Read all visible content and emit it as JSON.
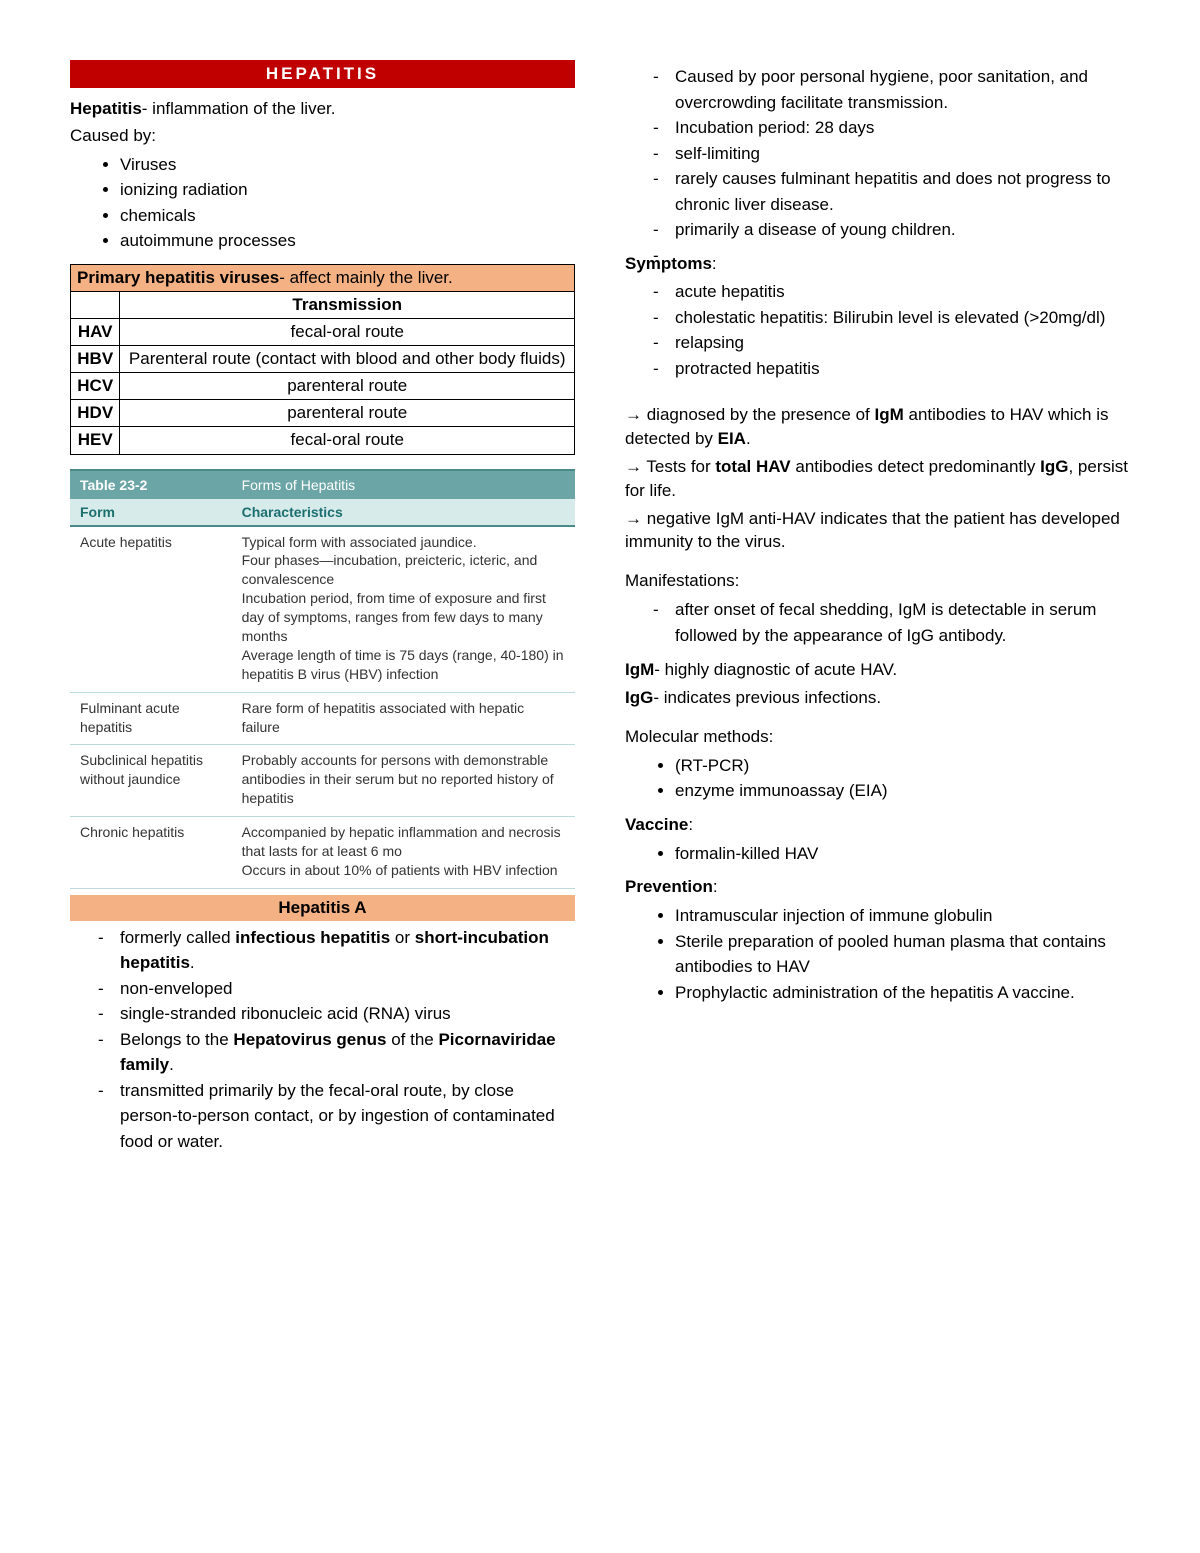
{
  "banner": "HEPATITIS",
  "intro": {
    "term": "Hepatitis",
    "definition": "- inflammation of the liver.",
    "caused_by_label": "Caused by:",
    "causes": [
      "Viruses",
      "ionizing radiation",
      "chemicals",
      "autoimmune processes"
    ]
  },
  "primary_table": {
    "header_html": "<span class=\"bold\">Primary hepatitis viruses</span>- affect mainly the liver.",
    "col2_header": "Transmission",
    "rows": [
      {
        "virus": "HAV",
        "trans": "fecal-oral route"
      },
      {
        "virus": "HBV",
        "trans": "Parenteral route (contact with blood and other body fluids)"
      },
      {
        "virus": "HCV",
        "trans": "parenteral route"
      },
      {
        "virus": "HDV",
        "trans": "parenteral route"
      },
      {
        "virus": "HEV",
        "trans": "fecal-oral route"
      }
    ]
  },
  "forms_table": {
    "table_no": "Table 23-2",
    "table_title": "Forms of Hepatitis",
    "col1": "Form",
    "col2": "Characteristics",
    "rows": [
      {
        "form": "Acute hepatitis",
        "char": "Typical form with associated jaundice.<br>Four phases—incubation, preicteric, icteric, and convalescence<br>Incubation period, from time of exposure and first day of symptoms, ranges from few days to many months<br>Average length of time is 75 days (range, 40-180) in hepatitis B virus (HBV) infection"
      },
      {
        "form": "Fulminant acute hepatitis",
        "char": "Rare form of hepatitis associated with hepatic failure"
      },
      {
        "form": "Subclinical hepatitis without jaundice",
        "char": "Probably accounts for persons with demonstrable antibodies in their serum but no reported history of hepatitis"
      },
      {
        "form": "Chronic hepatitis",
        "char": "Accompanied by hepatic inflammation and necrosis that lasts for at least 6 mo<br>Occurs in about 10% of patients with HBV infection"
      }
    ]
  },
  "hepA": {
    "banner": "Hepatitis A",
    "items_left": [
      "formerly called <span class=\"bold\">infectious hepatitis</span> or <span class=\"bold\">short-incubation hepatitis</span>.",
      "non-enveloped",
      "single-stranded ribonucleic acid (RNA) virus",
      "Belongs to the <span class=\"bold\">Hepatovirus genus</span> of the <span class=\"bold\">Picornaviridae family</span>.",
      "transmitted primarily by the fecal-oral route, by close person-to-person contact, or by ingestion of contaminated food or water."
    ],
    "items_right_top": [
      "Caused by poor personal hygiene, poor sanitation, and overcrowding facilitate transmission.",
      "Incubation period: 28 days",
      "self-limiting",
      "rarely causes fulminant hepatitis and does not progress to chronic liver disease.",
      "primarily a disease of young children.",
      ""
    ],
    "symptoms_label": "Symptoms",
    "symptoms": [
      "acute hepatitis",
      "cholestatic hepatitis: Bilirubin level is elevated (>20mg/dl)",
      "relapsing",
      "protracted hepatitis"
    ],
    "diag_lines": [
      "→ diagnosed by the presence of <span class=\"bold\">IgM</span> antibodies to HAV which is detected by <span class=\"bold\">EIA</span>.",
      "→ Tests for <span class=\"bold\">total HAV</span> antibodies detect predominantly <span class=\"bold\">IgG</span>, persist for life.",
      "→ negative IgM anti-HAV indicates that the patient has developed immunity to the virus."
    ],
    "manifest_label": "Manifestations:",
    "manifest_items": [
      "after onset of fecal shedding, IgM is detectable in serum followed by the appearance of IgG antibody."
    ],
    "igm_line": "<span class=\"bold\">IgM</span>- highly diagnostic of acute HAV.",
    "igg_line": "<span class=\"bold\">IgG</span>- indicates previous infections.",
    "molecular_label": "Molecular methods:",
    "molecular_items": [
      "(RT-PCR)",
      "enzyme immunoassay (EIA)"
    ],
    "vaccine_label": "Vaccine",
    "vaccine_items": [
      "formalin-killed HAV"
    ],
    "prevention_label": "Prevention",
    "prevention_items": [
      "Intramuscular injection of immune globulin",
      "Sterile preparation of pooled human plasma that contains antibodies to HAV",
      "Prophylactic administration of the hepatitis A vaccine."
    ]
  },
  "colors": {
    "banner_bg": "#c00000",
    "sub_bg": "#f4b183",
    "tb_header_bg": "#6ba5a5",
    "tb_subhead_bg": "#d7ebeb"
  }
}
